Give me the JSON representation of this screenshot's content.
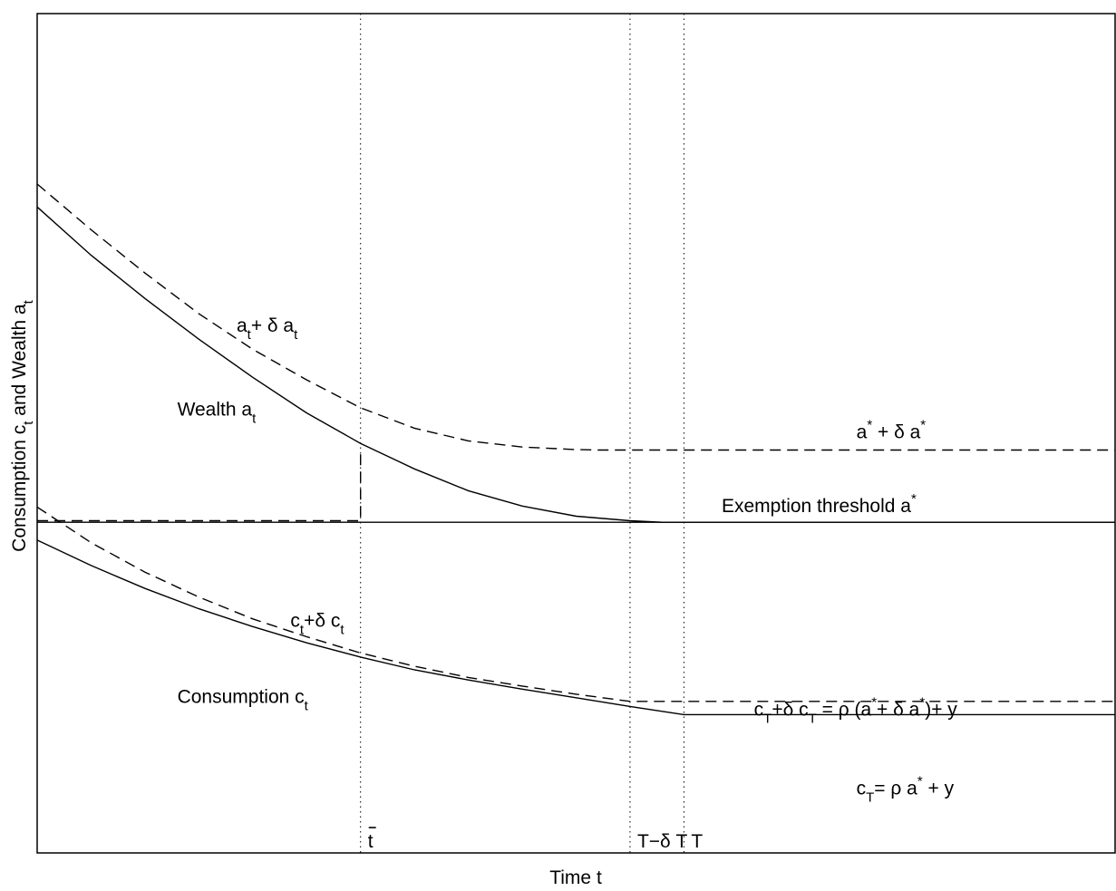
{
  "chart_data": {
    "type": "line",
    "xlabel": "Time t",
    "ylabel": "Consumption c_t and Wealth a_t",
    "x_ticks": [
      {
        "x": 0.3,
        "text": "t",
        "overbar": true
      },
      {
        "x": 0.55,
        "text": "T−δ T"
      },
      {
        "x": 0.6,
        "text": "T"
      }
    ],
    "vlines_dotted": [
      0.3,
      0.55,
      0.6
    ],
    "xlim": [
      0,
      1
    ],
    "ylim": [
      -0.65,
      1.0
    ],
    "series": [
      {
        "name": "Wealth a_t",
        "style": "solid",
        "x": [
          0,
          0.05,
          0.1,
          0.15,
          0.2,
          0.25,
          0.3,
          0.35,
          0.4,
          0.45,
          0.5,
          0.55,
          0.58,
          0.6,
          1.0
        ],
        "y": [
          0.62,
          0.525,
          0.44,
          0.36,
          0.285,
          0.215,
          0.155,
          0.105,
          0.062,
          0.032,
          0.012,
          0.003,
          0.0,
          0.0,
          0.0
        ]
      },
      {
        "name": "a_t + δ a_t",
        "style": "dashed",
        "x": [
          0,
          0.05,
          0.1,
          0.15,
          0.2,
          0.25,
          0.3,
          0.35,
          0.4,
          0.45,
          0.5,
          0.52,
          0.55,
          1.0
        ],
        "y": [
          0.665,
          0.575,
          0.49,
          0.41,
          0.34,
          0.28,
          0.225,
          0.185,
          0.16,
          0.148,
          0.143,
          0.142,
          0.142,
          0.142
        ]
      },
      {
        "name": "Exemption threshold a*",
        "style": "solid",
        "x": [
          0,
          1.0
        ],
        "y": [
          0.0,
          0.0
        ]
      },
      {
        "name": "pre-t step",
        "style": "dashed",
        "x": [
          0,
          0.3,
          0.3,
          0.3
        ],
        "y": [
          0.003,
          0.003,
          0.003,
          0.142
        ]
      },
      {
        "name": "Consumption c_t",
        "style": "solid",
        "x": [
          0,
          0.05,
          0.1,
          0.15,
          0.2,
          0.25,
          0.3,
          0.35,
          0.4,
          0.45,
          0.5,
          0.55,
          0.6,
          1.0
        ],
        "y": [
          -0.035,
          -0.085,
          -0.13,
          -0.17,
          -0.205,
          -0.237,
          -0.265,
          -0.29,
          -0.31,
          -0.328,
          -0.345,
          -0.362,
          -0.378,
          -0.378
        ]
      },
      {
        "name": "c_t + δ c_t",
        "style": "dashed",
        "x": [
          0,
          0.05,
          0.1,
          0.15,
          0.2,
          0.25,
          0.3,
          0.35,
          0.4,
          0.45,
          0.5,
          0.55,
          1.0
        ],
        "y": [
          0.03,
          -0.04,
          -0.098,
          -0.147,
          -0.19,
          -0.225,
          -0.257,
          -0.283,
          -0.305,
          -0.322,
          -0.338,
          -0.352,
          -0.352
        ]
      }
    ],
    "annotations": [
      {
        "id": "at_delta",
        "x": 0.185,
        "y": 0.375,
        "main": "a",
        "parts": [
          {
            "t": "a"
          },
          {
            "t": "t",
            "sub": true
          },
          {
            "t": "+ δ a"
          },
          {
            "t": "t",
            "sub": true
          }
        ]
      },
      {
        "id": "wealth",
        "x": 0.13,
        "y": 0.21,
        "parts": [
          {
            "t": "Wealth a"
          },
          {
            "t": "t",
            "sub": true
          }
        ]
      },
      {
        "id": "astar_delta",
        "x": 0.76,
        "y": 0.165,
        "parts": [
          {
            "t": "a"
          },
          {
            "t": "*",
            "sup": true
          },
          {
            "t": " + δ a"
          },
          {
            "t": "*",
            "sup": true
          }
        ]
      },
      {
        "id": "exemption",
        "x": 0.635,
        "y": 0.02,
        "parts": [
          {
            "t": "Exemption threshold a"
          },
          {
            "t": "*",
            "sup": true
          }
        ]
      },
      {
        "id": "ct_delta",
        "x": 0.235,
        "y": -0.205,
        "parts": [
          {
            "t": "c"
          },
          {
            "t": "t",
            "sub": true
          },
          {
            "t": "+δ c"
          },
          {
            "t": "t",
            "sub": true
          }
        ]
      },
      {
        "id": "consumption",
        "x": 0.13,
        "y": -0.355,
        "parts": [
          {
            "t": "Consumption c"
          },
          {
            "t": "t",
            "sub": true
          }
        ]
      },
      {
        "id": "cT_delta",
        "x": 0.665,
        "y": -0.38,
        "parts": [
          {
            "t": "c"
          },
          {
            "t": "T",
            "sub": true
          },
          {
            "t": "+δ c"
          },
          {
            "t": "T",
            "sub": true
          },
          {
            "t": " = ρ (a"
          },
          {
            "t": "*",
            "sup": true
          },
          {
            "t": "+ δ a"
          },
          {
            "t": "*",
            "sup": true
          },
          {
            "t": ")+ y"
          }
        ]
      },
      {
        "id": "cT",
        "x": 0.76,
        "y": -0.535,
        "parts": [
          {
            "t": "c"
          },
          {
            "t": "T",
            "sub": true
          },
          {
            "t": "= ρ a"
          },
          {
            "t": "*",
            "sup": true
          },
          {
            "t": " + y"
          }
        ]
      }
    ],
    "grid": false
  }
}
